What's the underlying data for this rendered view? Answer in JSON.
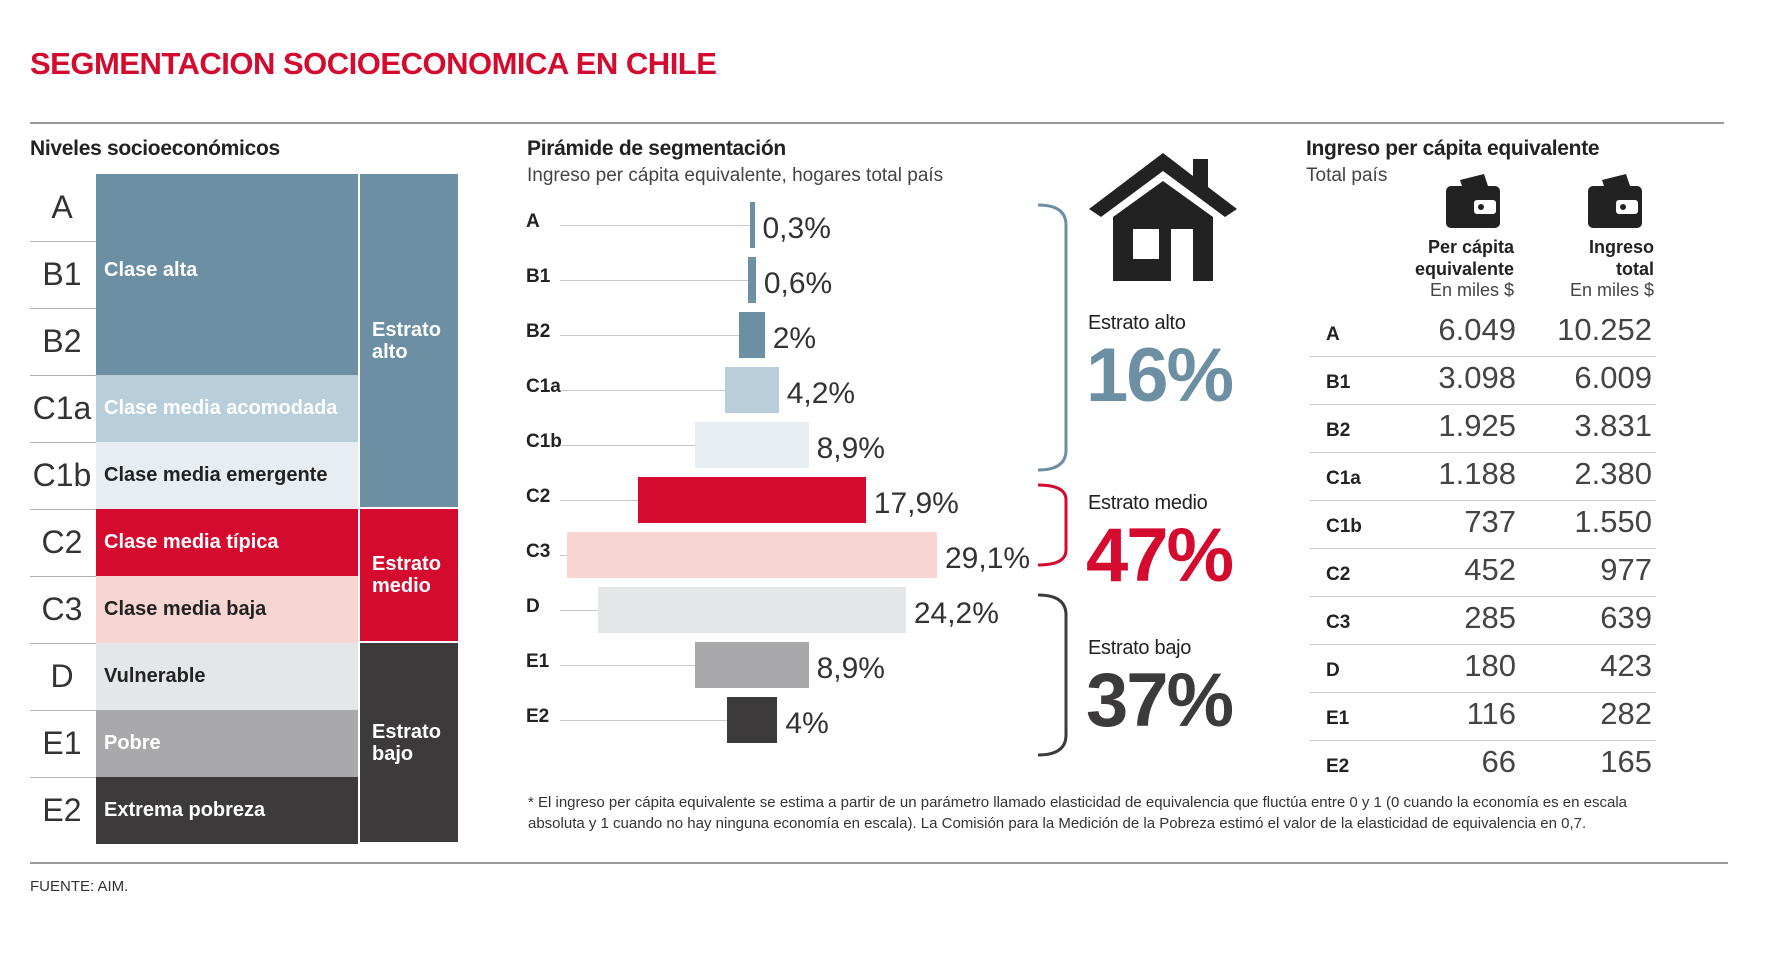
{
  "title": "SEGMENTACION SOCIOECONOMICA EN CHILE",
  "left_panel": {
    "heading": "Niveles socioeconómicos",
    "levels": [
      {
        "code": "A",
        "label": "",
        "color": "#6c8fa4",
        "text_color": "#ffffff"
      },
      {
        "code": "B1",
        "label": "Clase alta",
        "color": "#6c8fa4",
        "text_color": "#ffffff"
      },
      {
        "code": "B2",
        "label": "",
        "color": "#6c8fa4",
        "text_color": "#ffffff"
      },
      {
        "code": "C1a",
        "label": "Clase media acomodada",
        "color": "#b8cedb",
        "text_color": "#ffffff"
      },
      {
        "code": "C1b",
        "label": "Clase media emergente",
        "color": "#e7edf1",
        "text_color": "#222222"
      },
      {
        "code": "C2",
        "label": "Clase media típica",
        "color": "#d40a2e",
        "text_color": "#ffffff"
      },
      {
        "code": "C3",
        "label": "Clase media baja",
        "color": "#f6d5d3",
        "text_color": "#222222"
      },
      {
        "code": "D",
        "label": "Vulnerable",
        "color": "#e5e6e8",
        "text_color": "#222222"
      },
      {
        "code": "E1",
        "label": "Pobre",
        "color": "#a9a9ab",
        "text_color": "#ffffff"
      },
      {
        "code": "E2",
        "label": "Extrema pobreza",
        "color": "#3c3a3b",
        "text_color": "#ffffff"
      }
    ],
    "strata": [
      {
        "label": "Estrato\nalto",
        "color": "#6c8fa4"
      },
      {
        "label": "Estrato\nmedio",
        "color": "#d40a2e"
      },
      {
        "label": "Estrato\nbajo",
        "color": "#3c3a3b"
      }
    ]
  },
  "pyramid": {
    "heading": "Pirámide de segmentación",
    "subheading": "Ingreso per cápita  equivalente, hogares total país"
  },
  "chart_data": {
    "type": "bar",
    "title": "Pirámide de segmentación",
    "subtitle": "Ingreso per cápita  equivalente, hogares total país",
    "categories": [
      "A",
      "B1",
      "B2",
      "C1a",
      "C1b",
      "C2",
      "C3",
      "D",
      "E1",
      "E2"
    ],
    "values": [
      0.3,
      0.6,
      2,
      4.2,
      8.9,
      17.9,
      29.1,
      24.2,
      8.9,
      4
    ],
    "value_labels": [
      "0,3%",
      "0,6%",
      "2%",
      "4,2%",
      "8,9%",
      "17,9%",
      "29,1%",
      "24,2%",
      "8,9%",
      "4%"
    ],
    "colors": [
      "#6c8fa4",
      "#6c8fa4",
      "#6c8fa4",
      "#b8cedb",
      "#e7edf1",
      "#d40a2e",
      "#f6d5d3",
      "#e5e6e8",
      "#a9a9ab",
      "#3c3a3b"
    ],
    "unit": "%"
  },
  "strata_summary": [
    {
      "label": "Estrato alto",
      "value": "16%",
      "color": "#6c8fa4"
    },
    {
      "label": "Estrato medio",
      "value": "47%",
      "color": "#d40a2e"
    },
    {
      "label": "Estrato bajo",
      "value": "37%",
      "color": "#3c3a3b"
    }
  ],
  "income_table": {
    "heading": "Ingreso per cápita equivalente",
    "subheading": "Total país",
    "col1": {
      "line1": "Per cápita",
      "line2": "equivalente",
      "unit": "En miles $"
    },
    "col2": {
      "line1": "Ingreso",
      "line2": "total",
      "unit": "En miles $"
    },
    "rows": [
      {
        "code": "A",
        "per_capita": "6.049",
        "total": "10.252"
      },
      {
        "code": "B1",
        "per_capita": "3.098",
        "total": "6.009"
      },
      {
        "code": "B2",
        "per_capita": "1.925",
        "total": "3.831"
      },
      {
        "code": "C1a",
        "per_capita": "1.188",
        "total": "2.380"
      },
      {
        "code": "C1b",
        "per_capita": "737",
        "total": "1.550"
      },
      {
        "code": "C2",
        "per_capita": "452",
        "total": "977"
      },
      {
        "code": "C3",
        "per_capita": "285",
        "total": "639"
      },
      {
        "code": "D",
        "per_capita": "180",
        "total": "423"
      },
      {
        "code": "E1",
        "per_capita": "116",
        "total": "282"
      },
      {
        "code": "E2",
        "per_capita": "66",
        "total": "165"
      }
    ]
  },
  "note": "* El ingreso per cápita equivalente se estima  a partir de un parámetro llamado elasticidad de equivalencia  que fluctúa entre 0 y 1 (0 cuando la economía es en escala absoluta y 1 cuando no hay ninguna economía en escala). La Comisión para la Medición de la Pobreza estimó el valor de la elasticidad de equivalencia en 0,7.",
  "source": "FUENTE: AIM."
}
